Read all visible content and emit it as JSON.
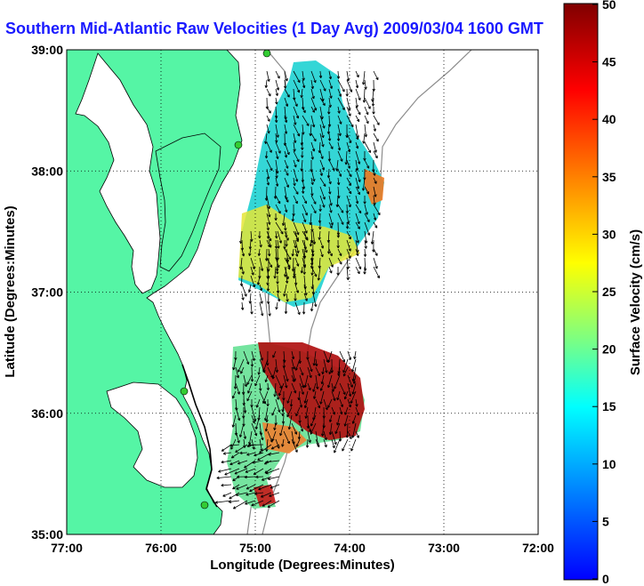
{
  "title": "Southern Mid-Atlantic Raw Velocities (1 Day Avg) 2009/03/04 1600 GMT",
  "xaxis": {
    "label": "Longitude (Degrees:Minutes)",
    "ticks": [
      "77:00",
      "76:00",
      "75:00",
      "74:00",
      "73:00",
      "72:00"
    ]
  },
  "yaxis": {
    "label": "Latitude (Degrees:Minutes)",
    "ticks": [
      "39:00",
      "38:00",
      "37:00",
      "36:00",
      "35:00"
    ]
  },
  "colorbar": {
    "label": "Surface Velocity (cm/s)",
    "ticks": [
      "50",
      "45",
      "40",
      "35",
      "30",
      "25",
      "20",
      "15",
      "10",
      "5",
      "0"
    ],
    "min": 0,
    "max": 50,
    "colormap": [
      "#0000ff",
      "#00aaff",
      "#00ffff",
      "#7fff7f",
      "#ffff00",
      "#ff8000",
      "#ff0000",
      "#800000"
    ]
  },
  "colors": {
    "land": "#55f5a5",
    "coastline": "#000000",
    "station": "#33cc33"
  },
  "grid": true
}
